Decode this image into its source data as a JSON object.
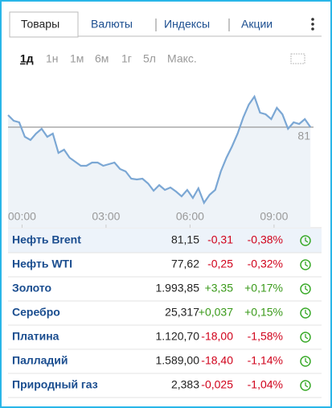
{
  "tabs": {
    "items": [
      "Товары",
      "Валюты",
      "Индексы",
      "Акции"
    ],
    "active": 0
  },
  "ranges": {
    "items": [
      "1д",
      "1н",
      "1м",
      "6м",
      "1г",
      "5л",
      "Макс."
    ],
    "active": 0
  },
  "chart_data": {
    "type": "line",
    "color": "#7ba7d4",
    "x": [
      -0.5,
      -0.3,
      -0.1,
      0.1,
      0.3,
      0.5,
      0.7,
      0.9,
      1.1,
      1.3,
      1.5,
      1.7,
      1.9,
      2.1,
      2.3,
      2.5,
      2.7,
      2.9,
      3.1,
      3.3,
      3.5,
      3.7,
      3.9,
      4.1,
      4.3,
      4.5,
      4.7,
      4.9,
      5.1,
      5.3,
      5.5,
      5.7,
      5.9,
      6.1,
      6.3,
      6.5,
      6.7,
      6.9,
      7.1,
      7.3,
      7.5,
      7.7,
      7.9,
      8.1,
      8.3,
      8.5,
      8.7,
      8.9,
      9.1,
      9.3,
      9.5,
      9.7,
      9.9,
      10.1,
      10.3
    ],
    "values": [
      81.15,
      81.08,
      81.06,
      80.88,
      80.84,
      80.92,
      80.98,
      80.88,
      80.92,
      80.68,
      80.72,
      80.62,
      80.57,
      80.52,
      80.52,
      80.56,
      80.56,
      80.52,
      80.54,
      80.56,
      80.48,
      80.45,
      80.36,
      80.35,
      80.36,
      80.3,
      80.21,
      80.28,
      80.22,
      80.25,
      80.2,
      80.14,
      80.22,
      80.12,
      80.24,
      80.06,
      80.16,
      80.22,
      80.45,
      80.62,
      80.76,
      80.92,
      81.12,
      81.28,
      81.38,
      81.18,
      81.16,
      81.1,
      81.24,
      81.16,
      80.98,
      81.06,
      81.04,
      81.1,
      81.0
    ],
    "xlim": [
      -0.5,
      10.41
    ],
    "ylim": [
      80,
      81.6
    ],
    "xticks": [
      {
        "value": 0,
        "label": "00:00"
      },
      {
        "value": 3,
        "label": "03:00"
      },
      {
        "value": 6,
        "label": "06:00"
      },
      {
        "value": 9,
        "label": "09:00"
      }
    ],
    "reference_line": 81
  },
  "table": {
    "highlight": 0,
    "rows": [
      [
        "Нефть Brent",
        "81,15",
        "-0,31",
        "-0,38%"
      ],
      [
        "Нефть WTI",
        "77,62",
        "-0,25",
        "-0,32%"
      ],
      [
        "Золото",
        "1.993,85",
        "+3,35",
        "+0,17%"
      ],
      [
        "Серебро",
        "25,317",
        "+0,037",
        "+0,15%"
      ],
      [
        "Платина",
        "1.120,70",
        "-18,00",
        "-1,58%"
      ],
      [
        "Палладий",
        "1.589,00",
        "-18,40",
        "-1,14%"
      ],
      [
        "Природный газ",
        "2,383",
        "-0,025",
        "-1,04%"
      ]
    ]
  }
}
